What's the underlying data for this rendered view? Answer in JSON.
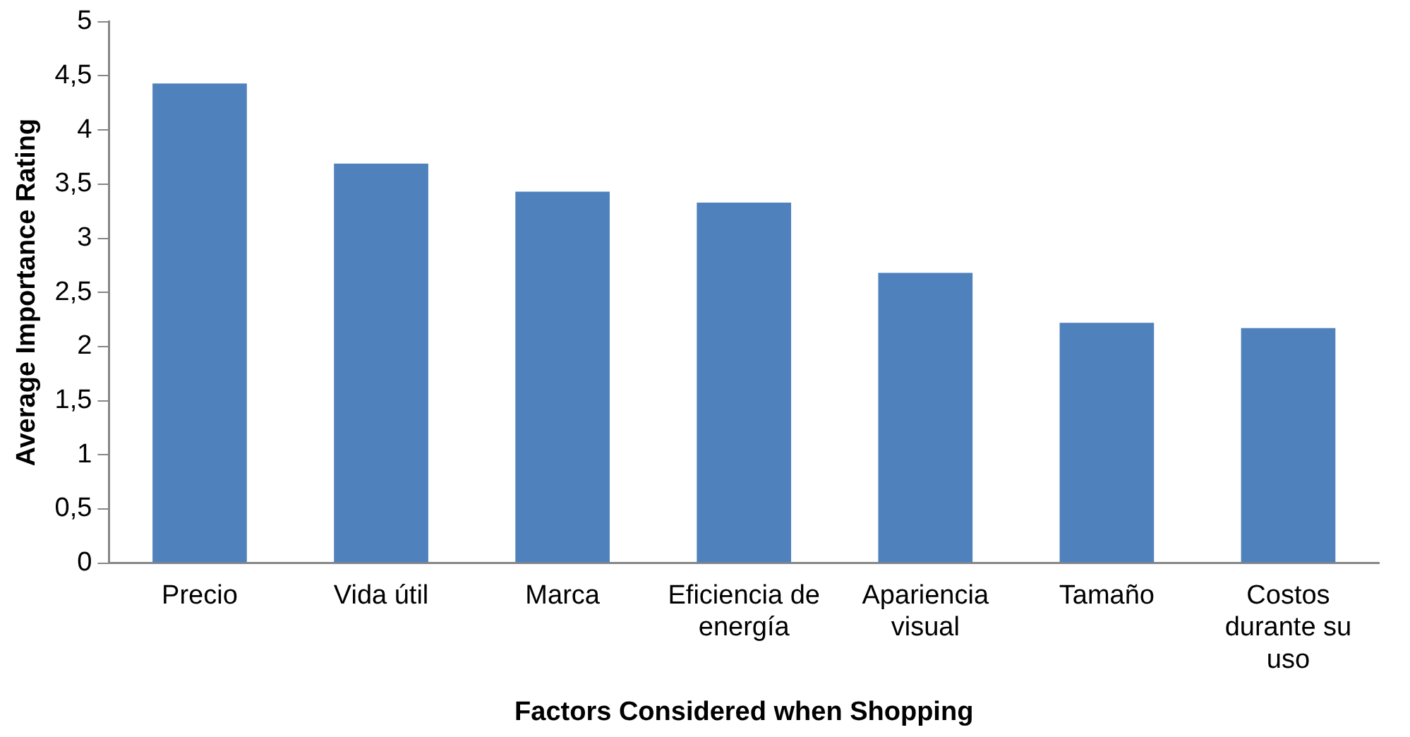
{
  "chart_data": {
    "type": "bar",
    "xlabel": "Factors Considered when Shopping",
    "ylabel": "Average Importance Rating",
    "categories": [
      "Precio",
      "Vida útil",
      "Marca",
      "Eficiencia de energía",
      "Apariencia visual",
      "Tamaño",
      "Costos durante su uso"
    ],
    "values": [
      4.43,
      3.69,
      3.43,
      3.33,
      2.68,
      2.22,
      2.17
    ],
    "color": "#4f81bd",
    "ylim": [
      0,
      5
    ],
    "yticks": [
      0,
      {
        "value": 0.5,
        "label": "0,5"
      },
      1,
      {
        "value": 1.5,
        "label": "1,5"
      },
      2,
      {
        "value": 2.5,
        "label": "2,5"
      },
      3,
      {
        "value": 3.5,
        "label": "3,5"
      },
      4,
      {
        "value": 4.5,
        "label": "4,5"
      },
      5
    ],
    "grid": false,
    "legend": false
  }
}
